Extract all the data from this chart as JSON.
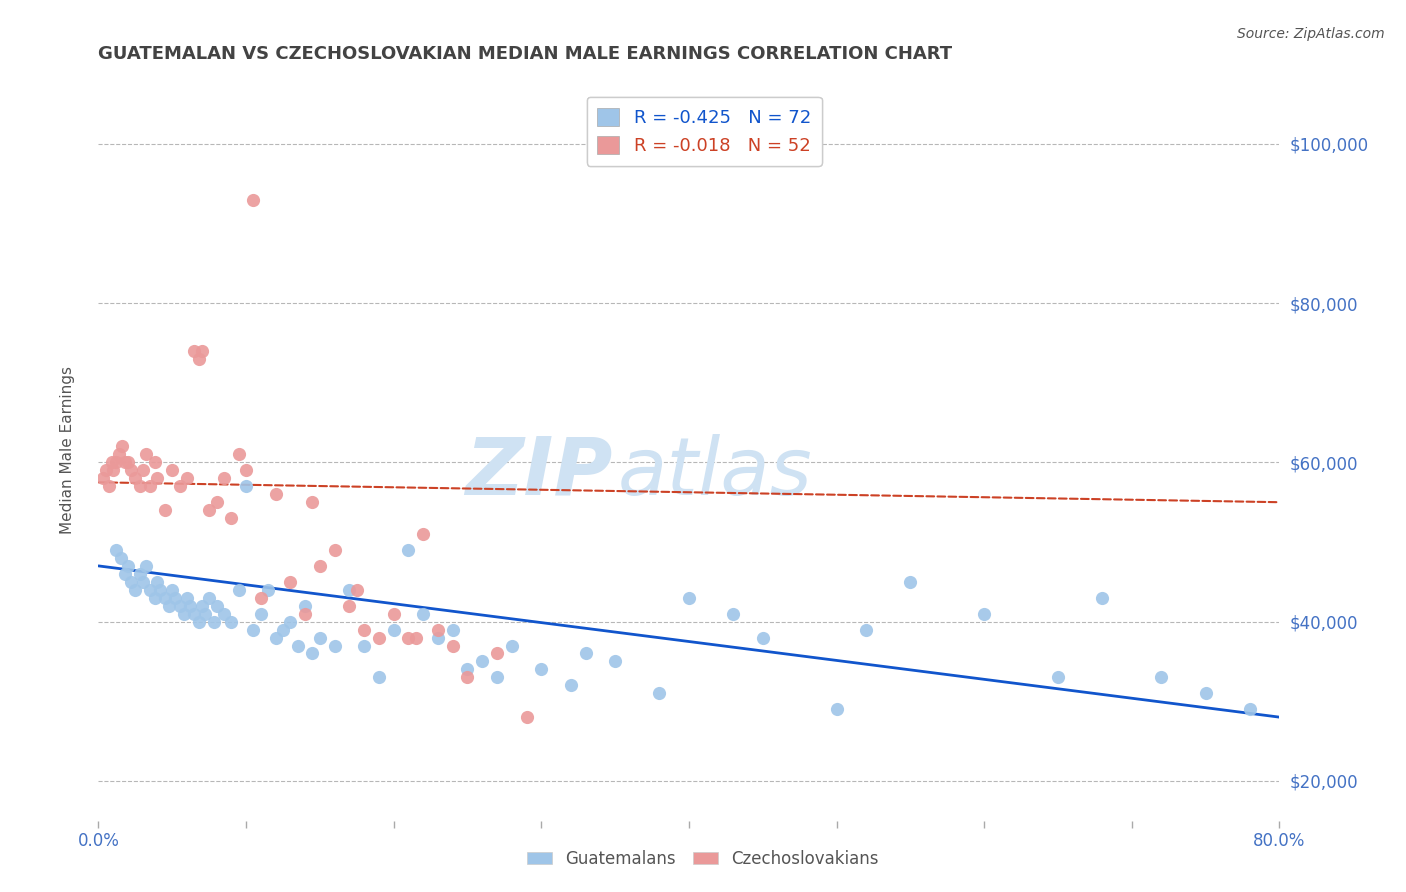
{
  "title": "GUATEMALAN VS CZECHOSLOVAKIAN MEDIAN MALE EARNINGS CORRELATION CHART",
  "source": "Source: ZipAtlas.com",
  "ylabel": "Median Male Earnings",
  "watermark_zip": "ZIP",
  "watermark_atlas": "atlas",
  "x_min": 0.0,
  "x_max": 80.0,
  "y_min": 15000,
  "y_max": 108000,
  "yticks": [
    20000,
    40000,
    60000,
    80000,
    100000
  ],
  "ytick_labels": [
    "$20,000",
    "$40,000",
    "$60,000",
    "$80,000",
    "$100,000"
  ],
  "xticks": [
    0,
    10,
    20,
    30,
    40,
    50,
    60,
    70,
    80
  ],
  "xtick_labels_show": [
    "0.0%",
    "80.0%"
  ],
  "blue_color": "#9fc5e8",
  "pink_color": "#ea9999",
  "blue_line_color": "#1155cc",
  "pink_line_color": "#cc4125",
  "legend_blue_label": "R = -0.425   N = 72",
  "legend_pink_label": "R = -0.018   N = 52",
  "legend_guatemalans": "Guatemalans",
  "legend_czechoslovakians": "Czechoslovakians",
  "blue_x": [
    1.2,
    1.5,
    1.8,
    2.0,
    2.2,
    2.5,
    2.8,
    3.0,
    3.2,
    3.5,
    3.8,
    4.0,
    4.2,
    4.5,
    4.8,
    5.0,
    5.2,
    5.5,
    5.8,
    6.0,
    6.2,
    6.5,
    6.8,
    7.0,
    7.2,
    7.5,
    7.8,
    8.0,
    8.5,
    9.0,
    9.5,
    10.0,
    10.5,
    11.0,
    11.5,
    12.0,
    12.5,
    13.0,
    13.5,
    14.0,
    14.5,
    15.0,
    16.0,
    17.0,
    18.0,
    19.0,
    20.0,
    21.0,
    22.0,
    23.0,
    24.0,
    25.0,
    26.0,
    27.0,
    28.0,
    30.0,
    32.0,
    33.0,
    35.0,
    38.0,
    40.0,
    43.0,
    50.0,
    55.0,
    60.0,
    65.0,
    68.0,
    72.0,
    75.0,
    78.0,
    52.0,
    45.0
  ],
  "blue_y": [
    49000,
    48000,
    46000,
    47000,
    45000,
    44000,
    46000,
    45000,
    47000,
    44000,
    43000,
    45000,
    44000,
    43000,
    42000,
    44000,
    43000,
    42000,
    41000,
    43000,
    42000,
    41000,
    40000,
    42000,
    41000,
    43000,
    40000,
    42000,
    41000,
    40000,
    44000,
    57000,
    39000,
    41000,
    44000,
    38000,
    39000,
    40000,
    37000,
    42000,
    36000,
    38000,
    37000,
    44000,
    37000,
    33000,
    39000,
    49000,
    41000,
    38000,
    39000,
    34000,
    35000,
    33000,
    37000,
    34000,
    32000,
    36000,
    35000,
    31000,
    43000,
    41000,
    29000,
    45000,
    41000,
    33000,
    43000,
    33000,
    31000,
    29000,
    39000,
    38000
  ],
  "pink_x": [
    0.3,
    0.5,
    0.7,
    0.9,
    1.0,
    1.2,
    1.4,
    1.6,
    1.8,
    2.0,
    2.2,
    2.5,
    2.8,
    3.0,
    3.2,
    3.5,
    4.0,
    4.5,
    5.0,
    5.5,
    6.0,
    6.5,
    7.0,
    7.5,
    8.0,
    8.5,
    9.0,
    9.5,
    10.0,
    11.0,
    12.0,
    13.0,
    14.0,
    15.0,
    16.0,
    17.0,
    18.0,
    19.0,
    20.0,
    21.0,
    22.0,
    23.0,
    24.0,
    25.0,
    27.0,
    29.0,
    3.8,
    6.8,
    10.5,
    14.5,
    17.5,
    21.5
  ],
  "pink_y": [
    58000,
    59000,
    57000,
    60000,
    59000,
    60000,
    61000,
    62000,
    60000,
    60000,
    59000,
    58000,
    57000,
    59000,
    61000,
    57000,
    58000,
    54000,
    59000,
    57000,
    58000,
    74000,
    74000,
    54000,
    55000,
    58000,
    53000,
    61000,
    59000,
    43000,
    56000,
    45000,
    41000,
    47000,
    49000,
    42000,
    39000,
    38000,
    41000,
    38000,
    51000,
    39000,
    37000,
    33000,
    36000,
    28000,
    60000,
    73000,
    93000,
    55000,
    44000,
    38000
  ],
  "title_color": "#434343",
  "right_axis_color": "#4472c4",
  "background_color": "#ffffff",
  "grid_color": "#b7b7b7",
  "watermark_color": "#cfe2f3"
}
